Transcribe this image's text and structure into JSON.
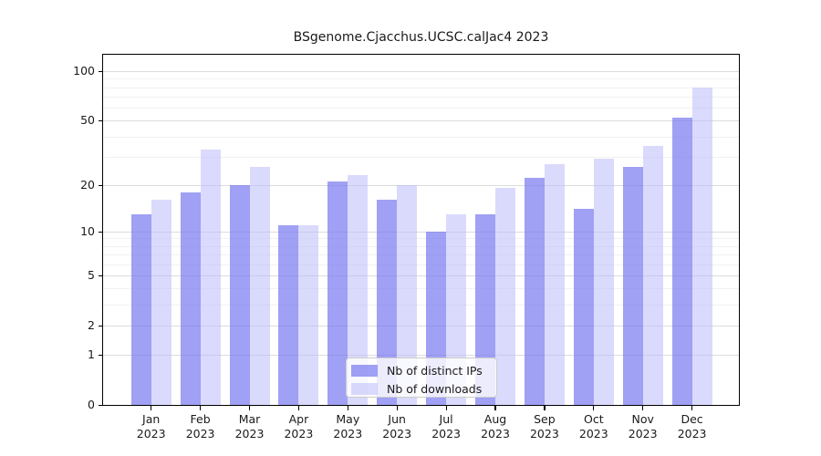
{
  "title": "BSgenome.Cjacchus.UCSC.calJac4 2023",
  "chart_data": {
    "type": "bar",
    "title": "BSgenome.Cjacchus.UCSC.calJac4 2023",
    "year_label": "2023",
    "categories": [
      "Jan",
      "Feb",
      "Mar",
      "Apr",
      "May",
      "Jun",
      "Jul",
      "Aug",
      "Sep",
      "Oct",
      "Nov",
      "Dec"
    ],
    "series": [
      {
        "name": "Nb of distinct IPs",
        "key": "ips",
        "values": [
          13,
          18,
          20,
          11,
          21,
          16,
          10,
          13,
          22,
          14,
          26,
          52
        ]
      },
      {
        "name": "Nb of downloads",
        "key": "downloads",
        "values": [
          16,
          33,
          26,
          11,
          23,
          20,
          13,
          19,
          27,
          29,
          35,
          80
        ]
      }
    ],
    "yscale": "log1p",
    "ylim": [
      0,
      110
    ],
    "y_tick_values": [
      0,
      1,
      2,
      5,
      10,
      20,
      50,
      100
    ],
    "y_minor_gridline_values": [
      3,
      4,
      6,
      7,
      8,
      9,
      30,
      40,
      60,
      70,
      80,
      90
    ],
    "grid": true,
    "legend_position": "bottom-center-inside",
    "colors": {
      "ips_bar": "rgba(123,123,240,0.72)",
      "downloads_bar": "rgba(187,187,249,0.55)",
      "major_grid": "#dcdcdc",
      "minor_grid": "#f1f1f1",
      "frame": "#000000",
      "text": "#1a1a1a"
    }
  }
}
